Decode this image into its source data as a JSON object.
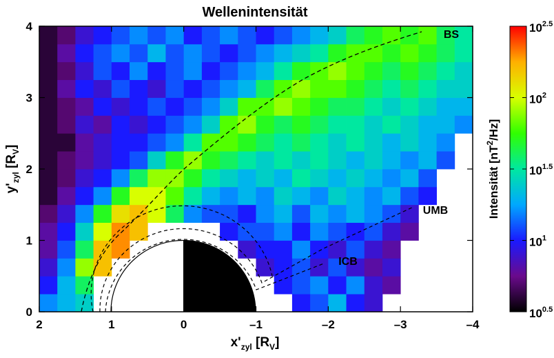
{
  "chart_data": {
    "type": "heatmap",
    "title": "Wellenintensität",
    "x_label": [
      "x'",
      "zyl",
      " [R",
      "V",
      "]"
    ],
    "y_label": [
      "y'",
      "zyl",
      " [R",
      "V",
      "]"
    ],
    "colorbar_label": [
      "Intensität [nT",
      "2",
      "/Hz]"
    ],
    "xlim": [
      2,
      -4
    ],
    "xticks": [
      2,
      1,
      0,
      {
        "value": -1,
        "label": "–1"
      },
      {
        "value": -2,
        "label": "–2"
      },
      {
        "value": -3,
        "label": "–3"
      },
      {
        "value": -4,
        "label": "–4"
      }
    ],
    "ylim": [
      0,
      4
    ],
    "yticks": [
      0,
      1,
      2,
      3,
      4
    ],
    "zlim": [
      0.5,
      2.5
    ],
    "zticks": [
      {
        "value": 0.5,
        "label": "10"
      },
      {
        "value": 1.0,
        "label": "10"
      },
      {
        "value": 1.5,
        "label": "10"
      },
      {
        "value": 2.0,
        "label": "10"
      },
      {
        "value": 2.5,
        "label": "10"
      }
    ],
    "colormap": [
      "#000000",
      "#6a0a8c",
      "#1a1aff",
      "#00a8ff",
      "#00e8a0",
      "#30ff00",
      "#d8ff00",
      "#ffb000",
      "#ff0000"
    ],
    "annotations": [
      "BS",
      "UMB",
      "ICB"
    ],
    "x_edges": [
      2,
      1.75,
      1.5,
      1.25,
      1,
      0.75,
      0.5,
      0.25,
      0,
      -0.25,
      -0.5,
      -0.75,
      -1,
      -1.25,
      -1.5,
      -1.75,
      -2,
      -2.25,
      -2.5,
      -2.75,
      -3,
      -3.25,
      -3.5,
      -3.75,
      -4
    ],
    "y_edges": [
      0,
      0.25,
      0.5,
      0.75,
      1,
      1.25,
      1.5,
      1.75,
      2,
      2.25,
      2.5,
      2.75,
      3,
      3.25,
      3.5,
      3.75,
      4
    ],
    "z": [
      [
        1.2,
        1.3,
        1.4,
        null,
        null,
        null,
        null,
        null,
        null,
        null,
        null,
        null,
        null,
        null,
        1.0,
        1.1,
        1.3,
        1.0,
        0.9,
        null,
        null,
        null,
        null,
        null
      ],
      [
        1.0,
        1.3,
        1.6,
        null,
        null,
        null,
        null,
        null,
        null,
        null,
        null,
        null,
        null,
        1.0,
        1.1,
        1.2,
        1.0,
        1.2,
        0.9,
        0.8,
        null,
        null,
        null,
        null
      ],
      [
        0.9,
        1.2,
        1.9,
        2.2,
        null,
        null,
        null,
        null,
        null,
        null,
        null,
        null,
        0.9,
        1.0,
        1.1,
        0.9,
        1.1,
        0.9,
        0.8,
        0.9,
        null,
        null,
        null,
        null
      ],
      [
        0.8,
        1.1,
        1.6,
        2.2,
        2.3,
        null,
        null,
        null,
        null,
        null,
        null,
        0.9,
        1.0,
        1.0,
        1.2,
        1.0,
        0.9,
        1.1,
        0.9,
        0.8,
        null,
        null,
        null,
        null
      ],
      [
        0.8,
        1.0,
        1.4,
        2.0,
        2.3,
        2.2,
        null,
        null,
        null,
        null,
        1.0,
        1.1,
        1.1,
        1.2,
        1.0,
        1.2,
        1.1,
        1.0,
        1.1,
        0.9,
        0.8,
        null,
        null,
        null
      ],
      [
        0.7,
        0.9,
        1.2,
        1.7,
        2.1,
        2.2,
        2.0,
        1.6,
        1.2,
        1.1,
        1.1,
        1.0,
        1.2,
        1.3,
        1.1,
        1.3,
        1.2,
        1.3,
        1.2,
        1.1,
        0.9,
        null,
        null,
        null
      ],
      [
        0.6,
        0.8,
        1.0,
        1.2,
        1.7,
        2.0,
        2.0,
        1.8,
        1.5,
        1.3,
        1.2,
        1.3,
        1.2,
        1.4,
        1.3,
        1.2,
        1.4,
        1.3,
        1.2,
        1.3,
        1.1,
        1.0,
        null,
        null
      ],
      [
        0.6,
        0.7,
        0.9,
        1.0,
        1.2,
        1.6,
        1.9,
        1.9,
        1.7,
        1.5,
        1.4,
        1.3,
        1.4,
        1.3,
        1.5,
        1.4,
        1.3,
        1.4,
        1.3,
        1.2,
        1.3,
        1.1,
        null,
        null
      ],
      [
        0.6,
        0.7,
        0.8,
        0.9,
        1.0,
        1.1,
        1.4,
        1.7,
        1.9,
        1.7,
        1.6,
        1.5,
        1.4,
        1.5,
        1.4,
        1.5,
        1.4,
        1.3,
        1.4,
        1.3,
        1.2,
        1.3,
        1.1,
        null
      ],
      [
        0.6,
        0.6,
        0.8,
        0.9,
        1.0,
        1.0,
        1.1,
        1.2,
        1.5,
        1.8,
        1.8,
        1.7,
        1.6,
        1.5,
        1.6,
        1.5,
        1.4,
        1.5,
        1.4,
        1.3,
        1.4,
        1.3,
        1.2,
        null
      ],
      [
        0.6,
        0.7,
        0.9,
        0.8,
        1.0,
        0.9,
        1.0,
        1.1,
        1.2,
        1.4,
        1.8,
        1.9,
        1.7,
        1.6,
        1.7,
        1.6,
        1.5,
        1.5,
        1.4,
        1.5,
        1.4,
        1.3,
        1.3,
        1.2
      ],
      [
        0.6,
        0.7,
        0.8,
        1.0,
        0.9,
        1.0,
        1.1,
        1.0,
        1.1,
        1.2,
        1.4,
        1.8,
        1.8,
        1.9,
        1.8,
        1.7,
        1.6,
        1.6,
        1.5,
        1.4,
        1.5,
        1.4,
        1.3,
        1.3
      ],
      [
        0.6,
        0.8,
        1.0,
        0.9,
        1.1,
        1.0,
        0.9,
        1.1,
        1.0,
        1.1,
        1.2,
        1.3,
        1.6,
        1.8,
        1.9,
        1.8,
        1.8,
        1.7,
        1.6,
        1.5,
        1.6,
        1.5,
        1.4,
        1.4
      ],
      [
        0.6,
        0.7,
        0.9,
        1.1,
        1.0,
        1.2,
        1.0,
        1.1,
        1.2,
        1.0,
        1.1,
        1.2,
        1.3,
        1.5,
        1.7,
        1.8,
        1.9,
        1.8,
        1.7,
        1.6,
        1.7,
        1.6,
        1.5,
        1.4
      ],
      [
        0.6,
        0.8,
        1.0,
        1.1,
        1.2,
        1.1,
        1.3,
        1.1,
        1.2,
        1.1,
        1.0,
        1.1,
        1.2,
        1.3,
        1.4,
        1.5,
        1.7,
        1.8,
        1.8,
        1.7,
        1.8,
        1.7,
        1.6,
        1.5
      ],
      [
        0.6,
        0.7,
        0.9,
        1.0,
        1.1,
        1.2,
        1.1,
        1.2,
        1.0,
        1.1,
        1.2,
        1.1,
        1.0,
        1.1,
        1.2,
        1.3,
        1.4,
        1.6,
        1.7,
        1.8,
        1.7,
        1.8,
        1.6,
        1.5
      ]
    ]
  }
}
